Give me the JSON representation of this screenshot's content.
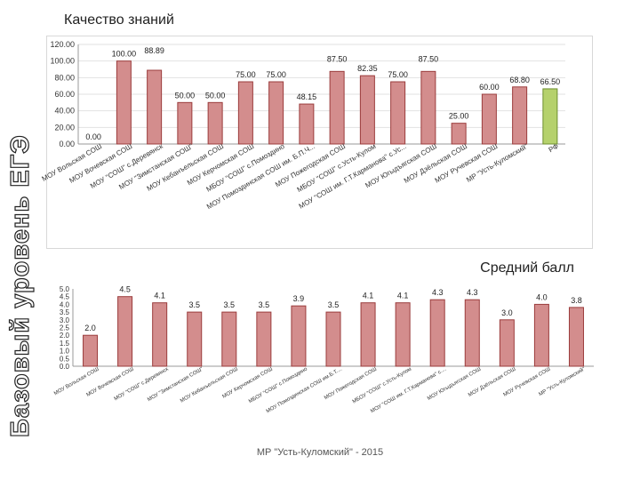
{
  "slide": {
    "side_title": "Базовый уровень ЕГЭ",
    "title": "Качество знаний",
    "footer": "МР \"Усть-Куломский\" - 2015"
  },
  "chart_data": [
    {
      "type": "bar",
      "title": "Качество знаний",
      "ylim": [
        0,
        120
      ],
      "yticks": [
        "0.00",
        "20.00",
        "40.00",
        "60.00",
        "80.00",
        "100.00",
        "120.00"
      ],
      "categories": [
        "МОУ Вольская СОШ",
        "МОУ Вочевская СОШ",
        "МОУ \"СОШ\" с.Деревянск",
        "МОУ \"Зимстанская СОШ\"",
        "МОУ Кебанъельская СОШ",
        "МОУ Керчомская СОШ",
        "МБОУ \"СОШ\" с.Помоздино",
        "МОУ Помоздинская СОШ им. Б.П.Ч...",
        "МОУ Пожегодская СОШ",
        "МБОУ \"СОШ\" с.Усть-Кулом",
        "МОУ \"СОШ им. Г.Т.Карманова\" с.Ус...",
        "МОУ Югыдъягская СОШ",
        "МОУ Дзёльская СОШ",
        "МОУ Ручевская СОШ",
        "МР \"Усть-Куломский\"",
        "РФ"
      ],
      "values": [
        0.0,
        100.0,
        88.89,
        50.0,
        50.0,
        75.0,
        75.0,
        48.15,
        87.5,
        82.35,
        75.0,
        87.5,
        25.0,
        60.0,
        68.8,
        66.5
      ],
      "value_labels": [
        "0.00",
        "100.00",
        "88.89",
        "50.00",
        "50.00",
        "75.00",
        "75.00",
        "48.15",
        "87.50",
        "82.35",
        "75.00",
        "87.50",
        "25.00",
        "60.00",
        "68.80",
        "66.50"
      ],
      "colors": {
        "bar": "#d38d8d",
        "stroke": "#9b3c3c",
        "highlight": "#b5d16c",
        "highlight_stroke": "#6e8f2f"
      },
      "highlight_index": 15
    },
    {
      "type": "bar",
      "title": "Средний балл",
      "ylim": [
        0,
        5
      ],
      "yticks": [
        "0.0",
        "0.5",
        "1.0",
        "1.5",
        "2.0",
        "2.5",
        "3.0",
        "3.5",
        "4.0",
        "4.5",
        "5.0"
      ],
      "categories": [
        "МОУ Вольская СОШ",
        "МОУ Вочевская СОШ",
        "МОУ \"СОШ\" с.Деревянск",
        "МОУ \"Зимстанская СОШ\"",
        "МОУ Кебанъельская СОШ",
        "МОУ Керчомская СОШ",
        "МБОУ \"СОШ\" с.Помоздино",
        "МОУ Помоздинская СОШ им.Б.Т....",
        "МОУ Пожегодская СОШ",
        "МБОУ \"СОШ\" с.Усть-Кулом",
        "МОУ \"СОШ им. Г.Т.Карманова\" с....",
        "МОУ Югыдъягская СОШ",
        "МОУ Дзёльская СОШ",
        "МОУ Ручевская СОШ",
        "МР \"Усть-Куломский\""
      ],
      "values": [
        2.0,
        4.5,
        4.1,
        3.5,
        3.5,
        3.5,
        3.9,
        3.5,
        4.1,
        4.1,
        4.3,
        4.3,
        3.0,
        4.0,
        3.8
      ],
      "value_labels": [
        "2.0",
        "4.5",
        "4.1",
        "3.5",
        "3.5",
        "3.5",
        "3.9",
        "3.5",
        "4.1",
        "4.1",
        "4.3",
        "4.3",
        "3.0",
        "4.0",
        "3.8"
      ],
      "colors": {
        "bar": "#d38d8d",
        "stroke": "#9b3c3c"
      }
    }
  ]
}
